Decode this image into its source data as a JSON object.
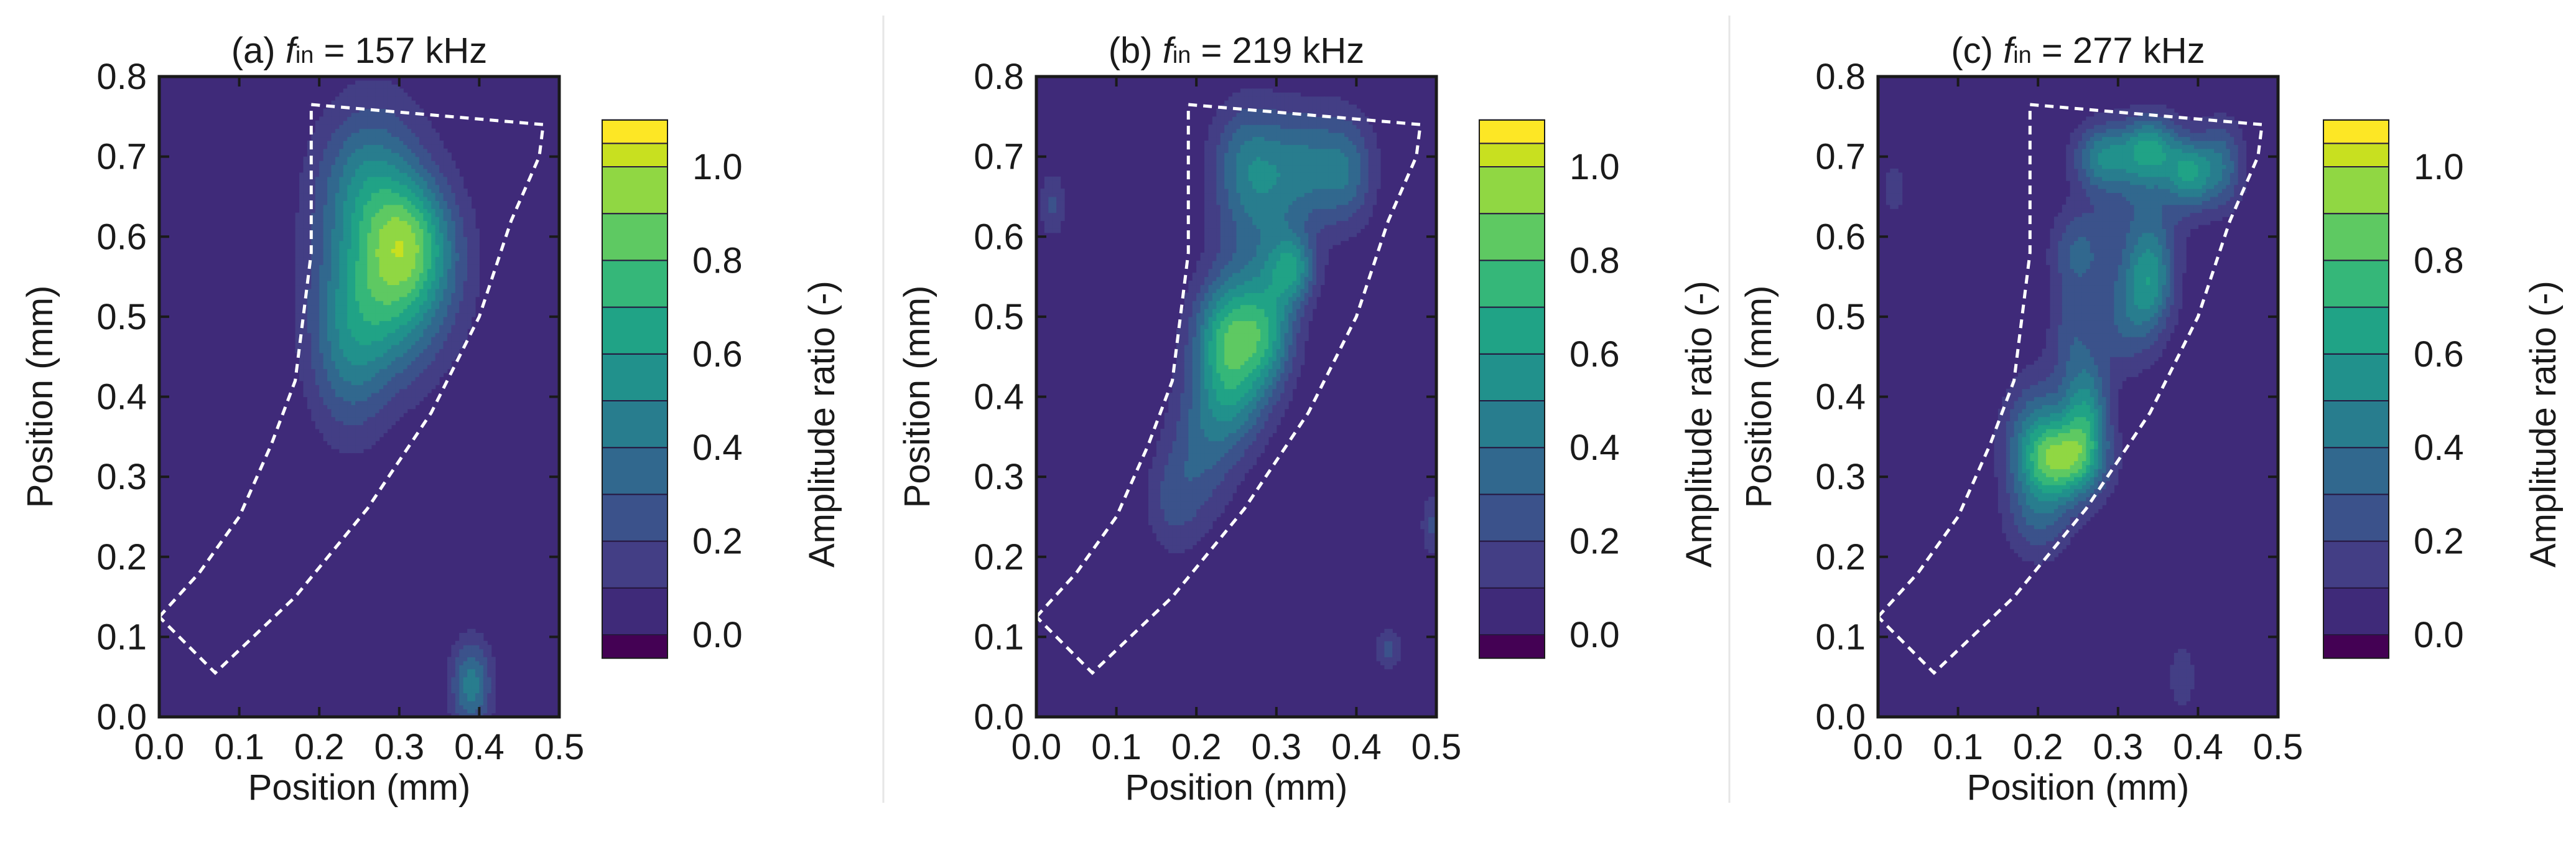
{
  "chart_data": [
    {
      "type": "heatmap",
      "panel": "(a)",
      "title_prefix": "(a) ",
      "f_symbol": "f",
      "f_subscript": "in",
      "title_suffix": " = 157 kHz",
      "xlabel": "Position (mm)",
      "ylabel": "Position (mm)",
      "xlim": [
        0.0,
        0.5
      ],
      "ylim": [
        0.0,
        0.8
      ],
      "x_ticks": [
        "0.0",
        "0.1",
        "0.2",
        "0.3",
        "0.4",
        "0.5"
      ],
      "y_ticks": [
        "0.0",
        "0.1",
        "0.2",
        "0.3",
        "0.4",
        "0.5",
        "0.6",
        "0.7",
        "0.8"
      ],
      "colorbar_label": "Amplitude ratio (-)",
      "colorbar_ticks": [
        "0.0",
        "0.2",
        "0.4",
        "0.6",
        "0.8",
        "1.0"
      ],
      "blobs": [
        {
          "x": 0.27,
          "y": 0.6,
          "sx": 0.055,
          "sy": 0.11,
          "a": 0.38
        },
        {
          "x": 0.315,
          "y": 0.6,
          "sx": 0.035,
          "sy": 0.05,
          "a": 0.35
        },
        {
          "x": 0.235,
          "y": 0.46,
          "sx": 0.035,
          "sy": 0.08,
          "a": 0.32
        },
        {
          "x": 0.29,
          "y": 0.52,
          "sx": 0.04,
          "sy": 0.07,
          "a": 0.25
        },
        {
          "x": 0.26,
          "y": 0.67,
          "sx": 0.04,
          "sy": 0.06,
          "a": 0.22
        },
        {
          "x": 0.33,
          "y": 0.55,
          "sx": 0.045,
          "sy": 0.07,
          "a": 0.22
        },
        {
          "x": 0.39,
          "y": 0.04,
          "sx": 0.018,
          "sy": 0.04,
          "a": 0.45
        }
      ]
    },
    {
      "type": "heatmap",
      "panel": "(b)",
      "title_prefix": "(b) ",
      "f_symbol": "f",
      "f_subscript": "in",
      "title_suffix": " = 219 kHz",
      "xlabel": "Position (mm)",
      "ylabel": "Position (mm)",
      "xlim": [
        0.0,
        0.5
      ],
      "ylim": [
        0.0,
        0.8
      ],
      "x_ticks": [
        "0.0",
        "0.1",
        "0.2",
        "0.3",
        "0.4",
        "0.5"
      ],
      "y_ticks": [
        "0.0",
        "0.1",
        "0.2",
        "0.3",
        "0.4",
        "0.5",
        "0.6",
        "0.7",
        "0.8"
      ],
      "colorbar_label": "Amplitude ratio (-)",
      "colorbar_ticks": [
        "0.0",
        "0.2",
        "0.4",
        "0.6",
        "0.8",
        "1.0"
      ],
      "blobs": [
        {
          "x": 0.24,
          "y": 0.48,
          "sx": 0.03,
          "sy": 0.05,
          "a": 0.6
        },
        {
          "x": 0.29,
          "y": 0.48,
          "sx": 0.025,
          "sy": 0.05,
          "a": 0.45
        },
        {
          "x": 0.32,
          "y": 0.56,
          "sx": 0.02,
          "sy": 0.03,
          "a": 0.45
        },
        {
          "x": 0.25,
          "y": 0.4,
          "sx": 0.03,
          "sy": 0.05,
          "a": 0.35
        },
        {
          "x": 0.21,
          "y": 0.35,
          "sx": 0.03,
          "sy": 0.07,
          "a": 0.28
        },
        {
          "x": 0.28,
          "y": 0.62,
          "sx": 0.04,
          "sy": 0.08,
          "a": 0.3
        },
        {
          "x": 0.34,
          "y": 0.69,
          "sx": 0.04,
          "sy": 0.05,
          "a": 0.35
        },
        {
          "x": 0.26,
          "y": 0.7,
          "sx": 0.03,
          "sy": 0.05,
          "a": 0.25
        },
        {
          "x": 0.39,
          "y": 0.68,
          "sx": 0.025,
          "sy": 0.05,
          "a": 0.25
        },
        {
          "x": 0.17,
          "y": 0.27,
          "sx": 0.025,
          "sy": 0.05,
          "a": 0.2
        },
        {
          "x": 0.02,
          "y": 0.64,
          "sx": 0.012,
          "sy": 0.03,
          "a": 0.22
        },
        {
          "x": 0.44,
          "y": 0.085,
          "sx": 0.012,
          "sy": 0.02,
          "a": 0.22
        },
        {
          "x": 0.495,
          "y": 0.24,
          "sx": 0.01,
          "sy": 0.03,
          "a": 0.22
        }
      ]
    },
    {
      "type": "heatmap",
      "panel": "(c)",
      "title_prefix": "(c) ",
      "f_symbol": "f",
      "f_subscript": "in",
      "title_suffix": " = 277 kHz",
      "xlabel": "Position (mm)",
      "ylabel": "Position (mm)",
      "xlim": [
        0.0,
        0.5
      ],
      "ylim": [
        0.0,
        0.8
      ],
      "x_ticks": [
        "0.0",
        "0.1",
        "0.2",
        "0.3",
        "0.4",
        "0.5"
      ],
      "y_ticks": [
        "0.0",
        "0.1",
        "0.2",
        "0.3",
        "0.4",
        "0.5",
        "0.6",
        "0.7",
        "0.8"
      ],
      "colorbar_label": "Amplitude ratio (-)",
      "colorbar_ticks": [
        "0.0",
        "0.2",
        "0.4",
        "0.6",
        "0.8",
        "1.0"
      ],
      "blobs": [
        {
          "x": 0.23,
          "y": 0.32,
          "sx": 0.035,
          "sy": 0.035,
          "a": 0.7
        },
        {
          "x": 0.26,
          "y": 0.38,
          "sx": 0.02,
          "sy": 0.05,
          "a": 0.5
        },
        {
          "x": 0.2,
          "y": 0.36,
          "sx": 0.03,
          "sy": 0.05,
          "a": 0.35
        },
        {
          "x": 0.2,
          "y": 0.25,
          "sx": 0.03,
          "sy": 0.04,
          "a": 0.28
        },
        {
          "x": 0.34,
          "y": 0.55,
          "sx": 0.022,
          "sy": 0.045,
          "a": 0.45
        },
        {
          "x": 0.31,
          "y": 0.5,
          "sx": 0.03,
          "sy": 0.05,
          "a": 0.28
        },
        {
          "x": 0.25,
          "y": 0.58,
          "sx": 0.025,
          "sy": 0.04,
          "a": 0.3
        },
        {
          "x": 0.24,
          "y": 0.48,
          "sx": 0.02,
          "sy": 0.04,
          "a": 0.2
        },
        {
          "x": 0.28,
          "y": 0.7,
          "sx": 0.025,
          "sy": 0.03,
          "a": 0.45
        },
        {
          "x": 0.34,
          "y": 0.71,
          "sx": 0.025,
          "sy": 0.03,
          "a": 0.55
        },
        {
          "x": 0.39,
          "y": 0.68,
          "sx": 0.02,
          "sy": 0.03,
          "a": 0.5
        },
        {
          "x": 0.43,
          "y": 0.69,
          "sx": 0.02,
          "sy": 0.04,
          "a": 0.35
        },
        {
          "x": 0.33,
          "y": 0.64,
          "sx": 0.04,
          "sy": 0.05,
          "a": 0.22
        },
        {
          "x": 0.02,
          "y": 0.66,
          "sx": 0.01,
          "sy": 0.02,
          "a": 0.2
        },
        {
          "x": 0.38,
          "y": 0.05,
          "sx": 0.012,
          "sy": 0.03,
          "a": 0.2
        }
      ]
    }
  ],
  "colors": {
    "background": "#3f2a79",
    "levels": [
      "#440154",
      "#46317e",
      "#433e85",
      "#3b528b",
      "#31688e",
      "#287d8e",
      "#21918c",
      "#20a386",
      "#35b779",
      "#5ec962",
      "#90d743",
      "#c8e020",
      "#fde725"
    ],
    "contour_line": "#26173f",
    "outline": "#ffffff",
    "axis": "#1a1a1a",
    "divider": "#e6e6e6"
  }
}
